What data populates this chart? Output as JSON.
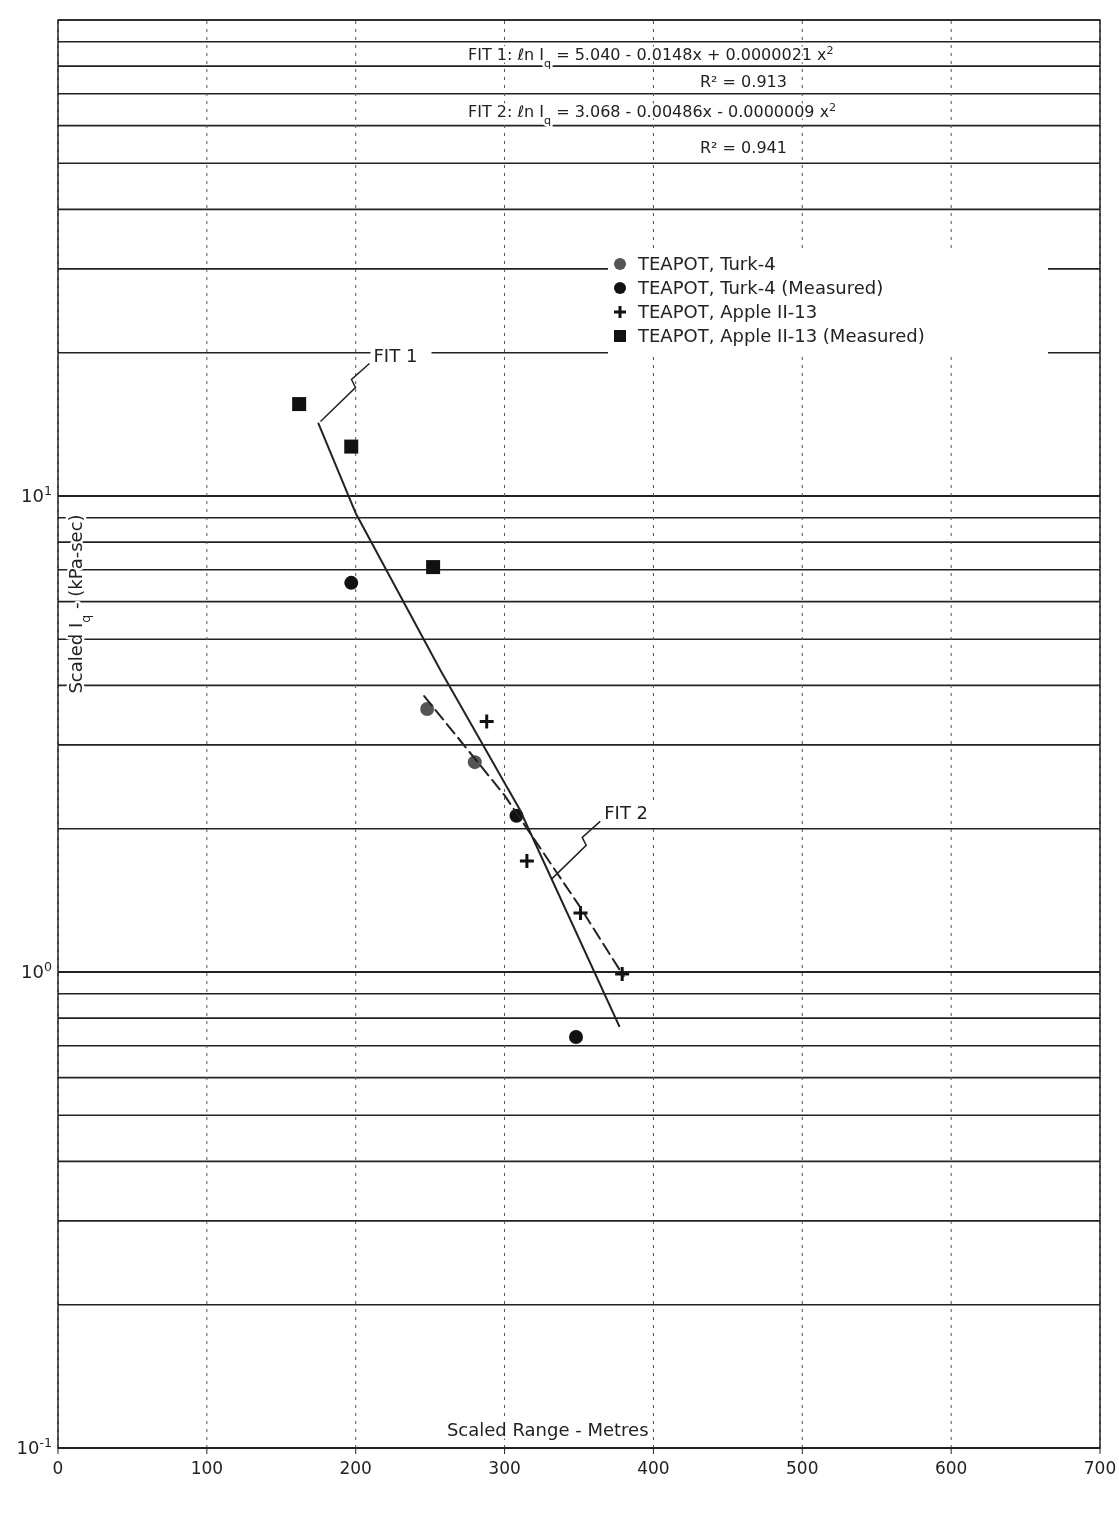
{
  "chart_data": {
    "type": "scatter",
    "xlabel": "Scaled Range - Metres",
    "ylabel": "Scaled I$_{q}$ - (kPa-sec)",
    "xlim": [
      0,
      700
    ],
    "xticks": [
      0,
      100,
      200,
      300,
      400,
      500,
      600,
      700
    ],
    "ylim": [
      0.1,
      100
    ],
    "log": true,
    "grid": true,
    "legend": "top right",
    "yticks": [
      {
        "value": 0.1,
        "label": "10$^{-1}$"
      },
      {
        "value": 0.2,
        "label": null
      },
      {
        "value": 0.3,
        "label": null
      },
      {
        "value": 0.4,
        "label": null
      },
      {
        "value": 0.5,
        "label": null
      },
      {
        "value": 0.6,
        "label": null
      },
      {
        "value": 0.7,
        "label": null
      },
      {
        "value": 0.8,
        "label": null
      },
      {
        "value": 0.9,
        "label": null
      },
      {
        "value": 1,
        "label": "10$^{0}$"
      },
      {
        "value": 2,
        "label": null
      },
      {
        "value": 3,
        "label": null
      },
      {
        "value": 4,
        "label": null
      },
      {
        "value": 5,
        "label": null
      },
      {
        "value": 6,
        "label": null
      },
      {
        "value": 7,
        "label": null
      },
      {
        "value": 8,
        "label": null
      },
      {
        "value": 9,
        "label": null
      },
      {
        "value": 10,
        "label": "10$^{1}$"
      },
      {
        "value": 20,
        "label": null
      },
      {
        "value": 30,
        "label": null
      },
      {
        "value": 40,
        "label": null
      },
      {
        "value": 50,
        "label": null
      },
      {
        "value": 60,
        "label": null
      },
      {
        "value": 70,
        "label": null
      },
      {
        "value": 80,
        "label": null
      },
      {
        "value": 90,
        "label": null
      },
      {
        "value": 100,
        "label": null
      }
    ],
    "series": [
      {
        "name": "TEAPOT, Turk-4",
        "marker": "circle",
        "color": "#555555",
        "x": [
          248,
          280
        ],
        "values": [
          3.57,
          2.76
        ]
      },
      {
        "name": "TEAPOT, Turk-4 (Measured)",
        "marker": "circle",
        "color": "#111111",
        "x": [
          197,
          308,
          348
        ],
        "values": [
          6.57,
          2.13,
          0.73
        ]
      },
      {
        "name": "TEAPOT, Apple II-13",
        "marker": "cross",
        "color": "#111111",
        "x": [
          288,
          315,
          351,
          379
        ],
        "values": [
          3.36,
          1.71,
          1.33,
          0.99
        ]
      },
      {
        "name": "TEAPOT, Apple II-13 (Measured)",
        "marker": "square",
        "color": "#111111",
        "x": [
          162,
          197,
          252
        ],
        "values": [
          15.6,
          12.7,
          7.09
        ]
      },
      {
        "type": "line",
        "marker": "none",
        "line_style": "solid",
        "color": "#222222",
        "x": [
          175,
          200,
          257,
          310,
          377
        ],
        "values": [
          14.2,
          9.2,
          4.3,
          2.2,
          0.77
        ]
      },
      {
        "type": "line",
        "marker": "none",
        "line_style": "dashed",
        "color": "#222222",
        "x": [
          246,
          300,
          350,
          380
        ],
        "values": [
          3.8,
          2.35,
          1.38,
          0.98
        ]
      }
    ],
    "annotations": [
      "FIT 1:  ℓn I$_{q}$ = 5.040 - 0.0148x + 0.0000021 x$^{2}$",
      "R² = 0.913",
      "FIT 2:  ℓn I$_{q}$ = 3.068 - 0.00486x - 0.0000009 x$^{2}$",
      "R² = 0.941",
      {
        "text": "FIT 1",
        "x": 175,
        "y": 14.2
      },
      {
        "text": "FIT 2",
        "x": 330,
        "y": 1.55
      }
    ]
  }
}
